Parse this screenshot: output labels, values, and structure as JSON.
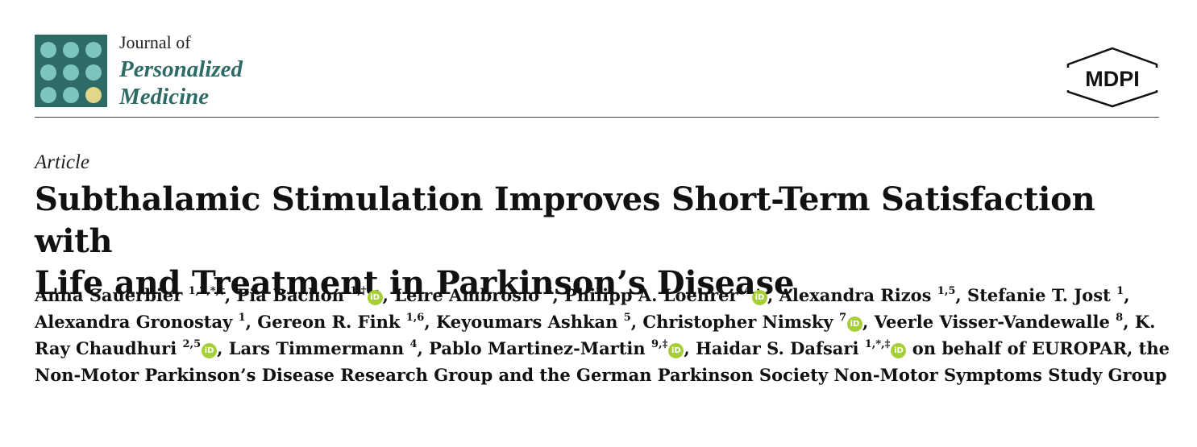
{
  "journal": {
    "line1": "Journal of",
    "line2": "Personalized",
    "line3": "Medicine",
    "brand_color": "#2e6b67",
    "dot_color": "#7cc5bd",
    "accent_dot_color": "#e2d68a"
  },
  "publisher": {
    "name": "MDPI"
  },
  "article": {
    "type": "Article",
    "title_line1": "Subthalamic Stimulation Improves Short-Term Satisfaction with",
    "title_line2": "Life and Treatment in Parkinson’s Disease"
  },
  "orcid_icon": {
    "name": "orcid-icon",
    "label": "iD",
    "color": "#a6ce39"
  },
  "authors": [
    {
      "name": "Anna Sauerbier",
      "aff": "1,2,*,†",
      "orcid": false,
      "sep": ", "
    },
    {
      "name": "Pia Bachon",
      "aff": "1,†",
      "orcid": true,
      "sep": ", "
    },
    {
      "name": "Leire Ambrosio",
      "aff": "3",
      "orcid": false,
      "sep": ", "
    },
    {
      "name": "Philipp A. Loehrer",
      "aff": "4",
      "orcid": true,
      "sep": ", "
    },
    {
      "name": "Alexandra Rizos",
      "aff": "1,5",
      "orcid": false,
      "sep": ", "
    },
    {
      "name": "Stefanie T. Jost",
      "aff": "1",
      "orcid": false,
      "sep": ", "
    },
    {
      "name": "Alexandra Gronostay",
      "aff": "1",
      "orcid": false,
      "sep": ", "
    },
    {
      "name": "Gereon R. Fink",
      "aff": "1,6",
      "orcid": false,
      "sep": ", "
    },
    {
      "name": "Keyoumars Ashkan",
      "aff": "5",
      "orcid": false,
      "sep": ", "
    },
    {
      "name": "Christopher Nimsky",
      "aff": "7",
      "orcid": true,
      "sep": ", "
    },
    {
      "name": "Veerle Visser-Vandewalle",
      "aff": "8",
      "orcid": false,
      "sep": ", "
    },
    {
      "name": "K. Ray Chaudhuri",
      "aff": "2,5",
      "orcid": true,
      "sep": ", "
    },
    {
      "name": "Lars Timmermann",
      "aff": "4",
      "orcid": false,
      "sep": ", "
    },
    {
      "name": "Pablo Martinez-Martin",
      "aff": "9,‡",
      "orcid": true,
      "sep": ", "
    },
    {
      "name": "Haidar S. Dafsari",
      "aff": "1,*,‡",
      "orcid": true,
      "sep": " "
    }
  ],
  "group_text": "on behalf of EUROPAR, the Non-Motor Parkinson’s Disease Research Group and the German Parkinson Society Non-Motor Symptoms Study Group"
}
